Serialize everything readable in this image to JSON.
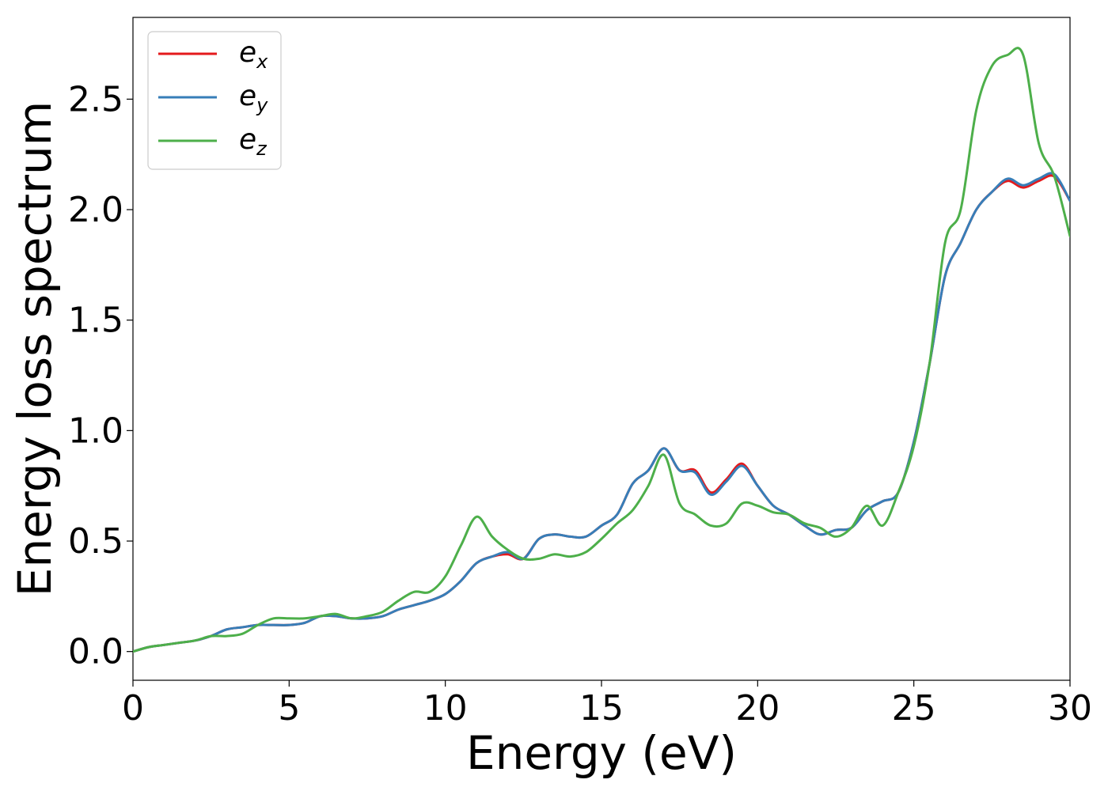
{
  "chart_data": {
    "type": "line",
    "xlabel": "Energy (eV)",
    "ylabel": "Energy loss spectrum",
    "xlim": [
      0,
      30
    ],
    "ylim": [
      -0.13,
      2.87
    ],
    "xticks": [
      0,
      5,
      10,
      15,
      20,
      25,
      30
    ],
    "xtick_labels": [
      "0",
      "5",
      "10",
      "15",
      "20",
      "25",
      "30"
    ],
    "yticks": [
      0.0,
      0.5,
      1.0,
      1.5,
      2.0,
      2.5
    ],
    "ytick_labels": [
      "0.0",
      "0.5",
      "1.0",
      "1.5",
      "2.0",
      "2.5"
    ],
    "grid": false,
    "legend_position": "top-left",
    "series": [
      {
        "name": "e",
        "sub": "x",
        "color": "#e41a1c",
        "x": [
          0,
          0.5,
          1,
          1.5,
          2,
          2.5,
          3,
          3.5,
          4,
          4.5,
          5,
          5.5,
          6,
          6.5,
          7,
          7.5,
          8,
          8.5,
          9,
          9.5,
          10,
          10.5,
          11,
          11.5,
          12,
          12.5,
          13,
          13.5,
          14,
          14.5,
          15,
          15.5,
          16,
          16.5,
          17,
          17.5,
          18,
          18.5,
          19,
          19.5,
          20,
          20.5,
          21,
          21.5,
          22,
          22.5,
          23,
          23.5,
          24,
          24.5,
          25,
          25.5,
          26,
          26.5,
          27,
          27.5,
          28,
          28.5,
          29,
          29.5,
          30
        ],
        "y": [
          0,
          0.02,
          0.03,
          0.04,
          0.05,
          0.07,
          0.1,
          0.11,
          0.12,
          0.12,
          0.12,
          0.13,
          0.16,
          0.16,
          0.15,
          0.15,
          0.16,
          0.19,
          0.21,
          0.23,
          0.26,
          0.32,
          0.4,
          0.43,
          0.44,
          0.42,
          0.51,
          0.53,
          0.52,
          0.52,
          0.57,
          0.62,
          0.76,
          0.82,
          0.92,
          0.82,
          0.82,
          0.72,
          0.78,
          0.85,
          0.75,
          0.66,
          0.62,
          0.57,
          0.53,
          0.55,
          0.56,
          0.64,
          0.68,
          0.72,
          0.95,
          1.3,
          1.7,
          1.85,
          2.0,
          2.08,
          2.13,
          2.1,
          2.13,
          2.15,
          2.04
        ]
      },
      {
        "name": "e",
        "sub": "y",
        "color": "#377eb8",
        "x": [
          0,
          0.5,
          1,
          1.5,
          2,
          2.5,
          3,
          3.5,
          4,
          4.5,
          5,
          5.5,
          6,
          6.5,
          7,
          7.5,
          8,
          8.5,
          9,
          9.5,
          10,
          10.5,
          11,
          11.5,
          12,
          12.5,
          13,
          13.5,
          14,
          14.5,
          15,
          15.5,
          16,
          16.5,
          17,
          17.5,
          18,
          18.5,
          19,
          19.5,
          20,
          20.5,
          21,
          21.5,
          22,
          22.5,
          23,
          23.5,
          24,
          24.5,
          25,
          25.5,
          26,
          26.5,
          27,
          27.5,
          28,
          28.5,
          29,
          29.5,
          30
        ],
        "y": [
          0,
          0.02,
          0.03,
          0.04,
          0.05,
          0.07,
          0.1,
          0.11,
          0.12,
          0.12,
          0.12,
          0.13,
          0.16,
          0.16,
          0.15,
          0.15,
          0.16,
          0.19,
          0.21,
          0.23,
          0.26,
          0.32,
          0.4,
          0.43,
          0.45,
          0.42,
          0.51,
          0.53,
          0.52,
          0.52,
          0.57,
          0.62,
          0.76,
          0.82,
          0.92,
          0.82,
          0.81,
          0.71,
          0.77,
          0.84,
          0.75,
          0.66,
          0.62,
          0.57,
          0.53,
          0.55,
          0.56,
          0.64,
          0.68,
          0.72,
          0.95,
          1.3,
          1.7,
          1.85,
          2.0,
          2.08,
          2.14,
          2.11,
          2.14,
          2.16,
          2.04
        ]
      },
      {
        "name": "e",
        "sub": "z",
        "color": "#4daf4a",
        "x": [
          0,
          0.5,
          1,
          1.5,
          2,
          2.5,
          3,
          3.5,
          4,
          4.5,
          5,
          5.5,
          6,
          6.5,
          7,
          7.5,
          8,
          8.5,
          9,
          9.5,
          10,
          10.5,
          11,
          11.5,
          12,
          12.5,
          13,
          13.5,
          14,
          14.5,
          15,
          15.5,
          16,
          16.5,
          17,
          17.5,
          18,
          18.5,
          19,
          19.5,
          20,
          20.5,
          21,
          21.5,
          22,
          22.5,
          23,
          23.5,
          24,
          24.5,
          25,
          25.5,
          26,
          26.5,
          27,
          27.5,
          28,
          28.5,
          29,
          29.5,
          30
        ],
        "y": [
          0,
          0.02,
          0.03,
          0.04,
          0.05,
          0.07,
          0.07,
          0.08,
          0.12,
          0.15,
          0.15,
          0.15,
          0.16,
          0.17,
          0.15,
          0.16,
          0.18,
          0.23,
          0.27,
          0.27,
          0.34,
          0.48,
          0.61,
          0.52,
          0.46,
          0.42,
          0.42,
          0.44,
          0.43,
          0.45,
          0.51,
          0.58,
          0.64,
          0.75,
          0.89,
          0.67,
          0.62,
          0.57,
          0.58,
          0.67,
          0.66,
          0.63,
          0.62,
          0.58,
          0.56,
          0.52,
          0.56,
          0.66,
          0.57,
          0.72,
          0.93,
          1.3,
          1.85,
          2.0,
          2.45,
          2.65,
          2.7,
          2.7,
          2.3,
          2.15,
          1.88
        ]
      }
    ]
  }
}
